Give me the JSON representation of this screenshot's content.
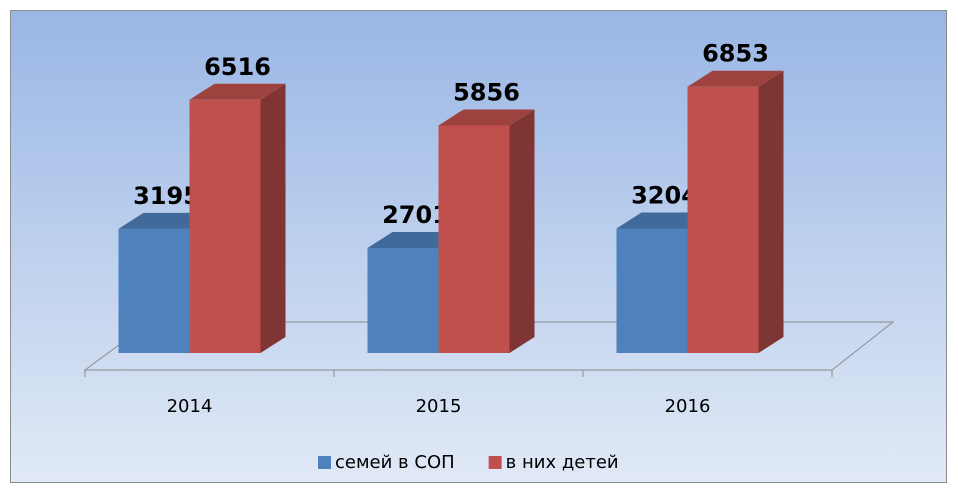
{
  "chart_data": {
    "type": "bar3d",
    "categories": [
      "2014",
      "2015",
      "2016"
    ],
    "series": [
      {
        "name": "семей в СОП",
        "color": "#4f81bd",
        "values": [
          3195,
          2701,
          3204
        ]
      },
      {
        "name": "в них детей",
        "color": "#c0504d",
        "values": [
          6516,
          5856,
          6853
        ]
      }
    ],
    "ylim": [
      0,
      7000
    ],
    "legend": "bottom"
  }
}
